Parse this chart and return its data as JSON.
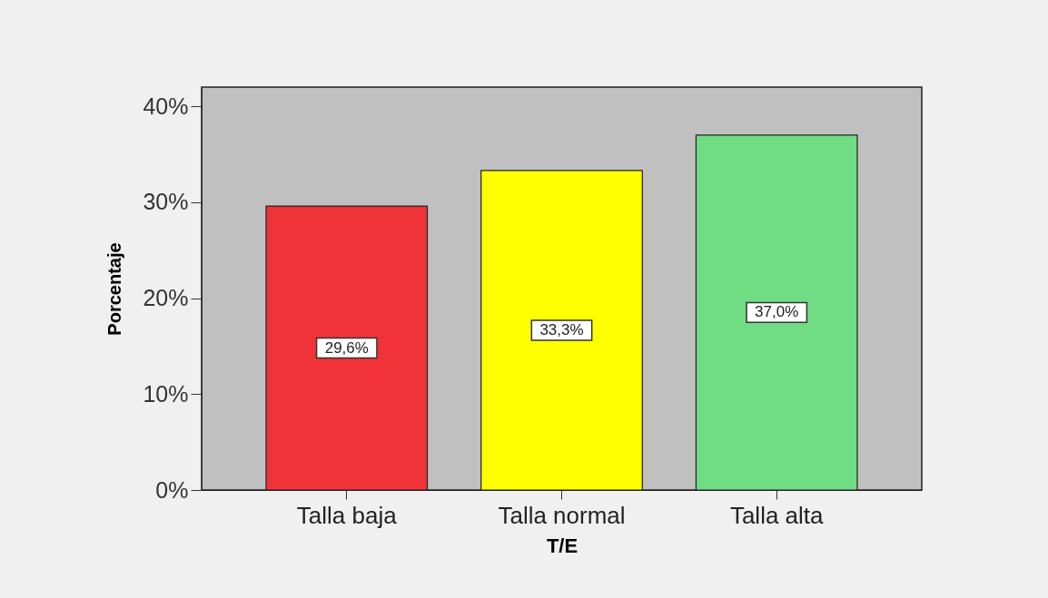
{
  "chart_data": {
    "type": "bar",
    "xlabel": "T/E",
    "ylabel": "Porcentaje",
    "categories": [
      "Talla baja",
      "Talla normal",
      "Talla alta"
    ],
    "values": [
      29.6,
      33.3,
      37.0
    ],
    "colors": [
      "#ef3339",
      "#ffff00",
      "#70dc84"
    ],
    "value_labels": [
      "29,6%",
      "33,3%",
      "37,0%"
    ],
    "ylim": [
      0,
      42
    ],
    "yticks": [
      {
        "value": 0,
        "label": "0%"
      },
      {
        "value": 10,
        "label": "10%"
      },
      {
        "value": 20,
        "label": "20%"
      },
      {
        "value": 30,
        "label": "30%"
      },
      {
        "value": 40,
        "label": "40%"
      }
    ],
    "grid": false
  }
}
